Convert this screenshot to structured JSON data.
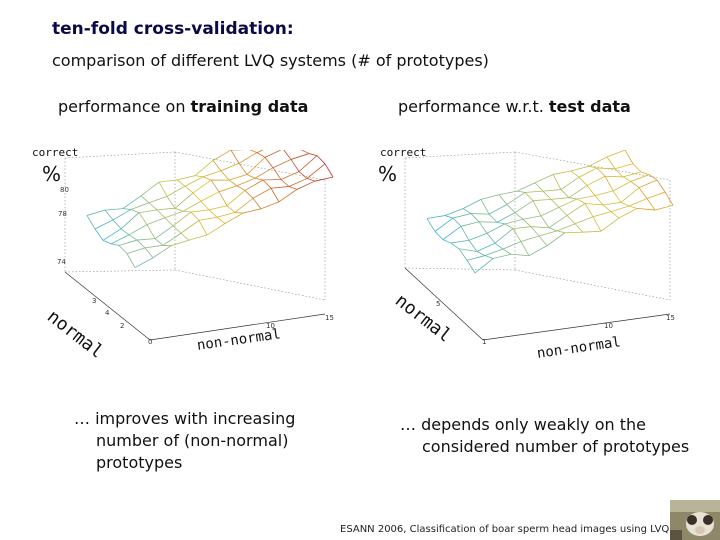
{
  "slide": {
    "title": "ten-fold cross-validation:",
    "subtitle": "comparison of different LVQ systems (# of prototypes)",
    "footer": "ESANN 2006, Classification of boar sperm head images using LVQ"
  },
  "left_panel": {
    "heading_prefix": "performance on ",
    "heading_bold": "training data",
    "zlabel": "correct",
    "percent": "%",
    "ylabel": "normal",
    "xlabel": "non-normal",
    "zticks": [
      "80",
      "78",
      "74"
    ],
    "yticks": [
      "3",
      "4",
      "2",
      "0"
    ],
    "xticks": [
      "10",
      "15"
    ],
    "note": "… improves with increasing number of (non-normal) prototypes"
  },
  "right_panel": {
    "heading_prefix": "performance w.r.t. ",
    "heading_bold": "test data",
    "zlabel": "correct",
    "percent": "%",
    "ylabel": "normal",
    "xlabel": "non-normal",
    "yticks": [
      "5",
      "1"
    ],
    "xticks": [
      "10",
      "15"
    ],
    "note": "… depends only weakly on the considered number of prototypes"
  },
  "colors": {
    "title": "#0a0a46",
    "surface_low": "#2ab4e0",
    "surface_mid": "#e0c030",
    "surface_high": "#c0302a",
    "grid": "#8a8a8a"
  },
  "icons": {
    "corner_photo": "boar-photo-icon"
  }
}
